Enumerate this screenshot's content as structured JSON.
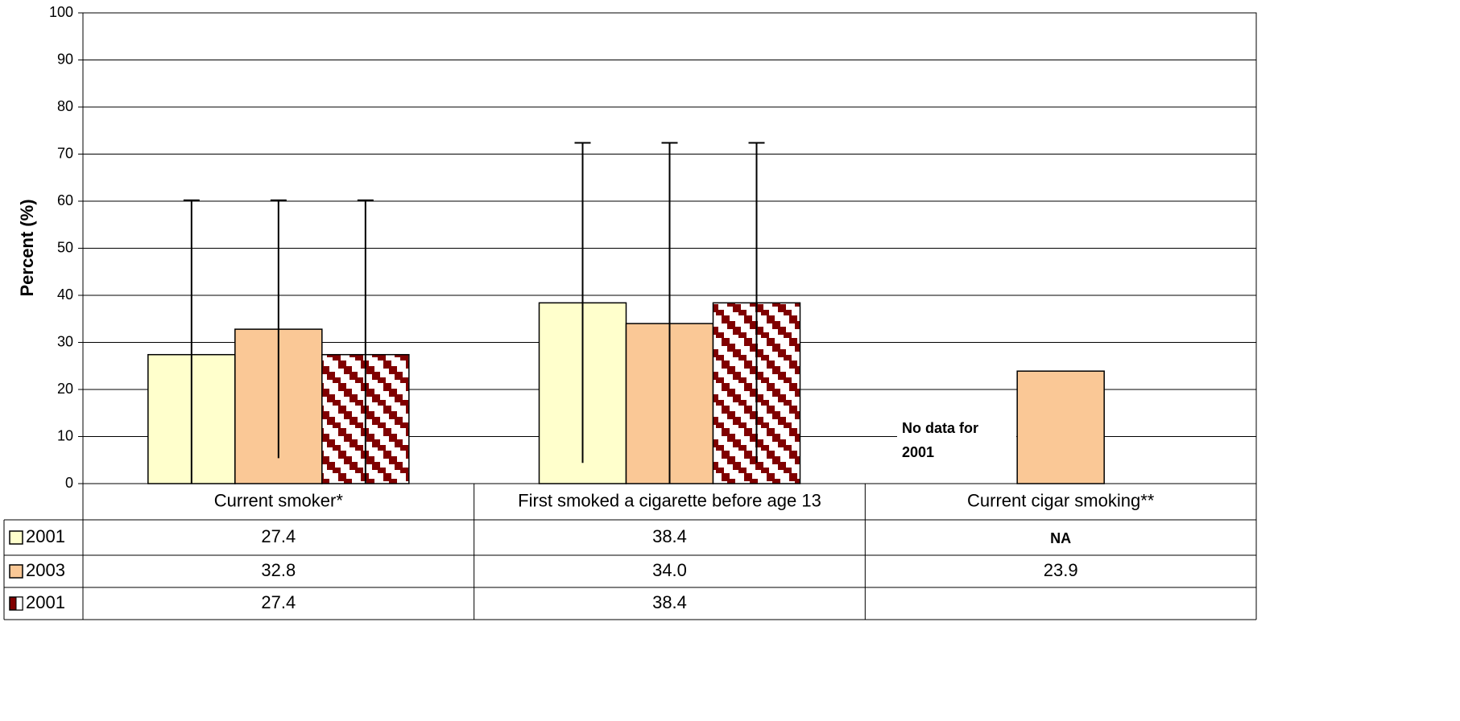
{
  "chart_data": {
    "type": "bar",
    "y_label": "Percent (%)",
    "categories": [
      "Current smoker*",
      "First smoked a cigarette before age 13",
      "Current cigar smoking**"
    ],
    "series": [
      {
        "name": "2001",
        "color": "#ffffcc",
        "values": [
          27.4,
          38.4,
          null
        ],
        "value_labels": [
          "27.4",
          "38.4",
          "NA"
        ],
        "errors": [
          32.8,
          34.0,
          null
        ]
      },
      {
        "name": "2003",
        "color": "#fac896",
        "values": [
          32.8,
          34.0,
          23.9
        ],
        "value_labels": [
          "32.8",
          "34.0",
          "23.9"
        ],
        "errors": [
          27.4,
          38.4,
          null
        ]
      },
      {
        "name": "2001",
        "color": "#800000",
        "pattern": true,
        "values": [
          27.4,
          38.4,
          null
        ],
        "value_labels": [
          "27.4",
          "38.4",
          null
        ],
        "errors": [
          32.8,
          34.0,
          null
        ]
      }
    ],
    "annotation": [
      "No data for",
      "2001"
    ],
    "ylim": [
      0,
      100
    ],
    "yticks": [
      0,
      10,
      20,
      30,
      40,
      50,
      60,
      70,
      80,
      90,
      100
    ],
    "grid": true,
    "data_table": true
  }
}
